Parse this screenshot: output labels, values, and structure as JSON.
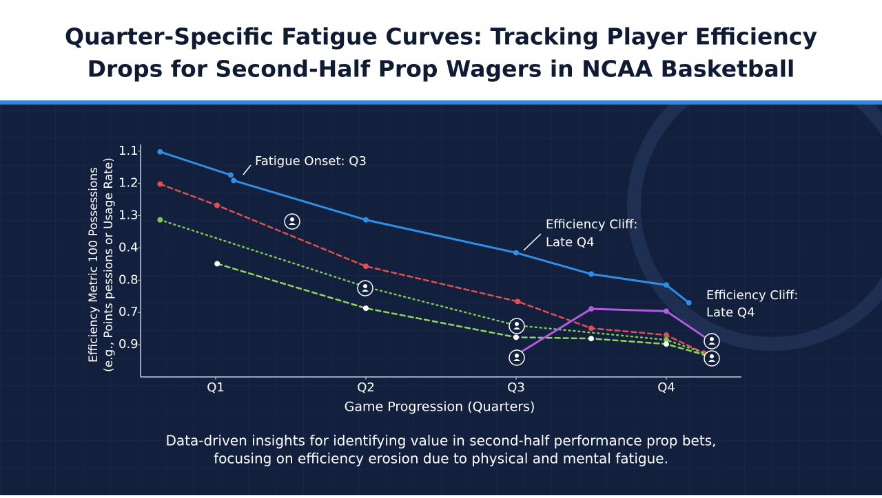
{
  "chart_data": {
    "type": "line",
    "title": [
      "Quarter-Specific Fatigue Curves: Tracking Player Efficiency",
      "Drops for Second-Half Prop Wagers in NCAA Basketball"
    ],
    "subtitle": [
      "Data-driven insights for identifying value in second-half performance prop bets,",
      "focusing on efficiency erosion due to physical and mental fatigue."
    ],
    "xlabel": "Game Progression (Quarters)",
    "ylabel": [
      "Efficiency Metric  100 Possessions",
      "(e.g., Points pessions or Usage Rate)"
    ],
    "xlim": [
      0.5,
      4.5
    ],
    "xticks": [
      {
        "value": 1,
        "label": "Q1"
      },
      {
        "value": 2,
        "label": "Q2"
      },
      {
        "value": 3,
        "label": "Q3"
      },
      {
        "value": 4,
        "label": "Q4"
      }
    ],
    "ylim": [
      0,
      7.4
    ],
    "yticks": [
      {
        "value": 7,
        "label": "1.1"
      },
      {
        "value": 6,
        "label": "1.2"
      },
      {
        "value": 5,
        "label": "1.3"
      },
      {
        "value": 4,
        "label": "0.4"
      },
      {
        "value": 3,
        "label": "0.8"
      },
      {
        "value": 2,
        "label": "0.7"
      },
      {
        "value": 1,
        "label": "0.9"
      }
    ],
    "series": [
      {
        "color": "#2e8fe6",
        "style": "solid",
        "x": [
          0.63,
          1.1,
          1.11,
          1.12,
          2,
          3,
          3.5,
          4,
          4.15
        ],
        "values": [
          6.98,
          6.26,
          null,
          6.09,
          4.87,
          3.85,
          3.19,
          2.85,
          2.3
        ]
      },
      {
        "color": "#e0504f",
        "style": "dashed",
        "x": [
          0.63,
          1.01,
          2,
          3.01,
          3.5,
          4,
          4.25
        ],
        "values": [
          5.98,
          5.32,
          3.43,
          2.34,
          1.51,
          1.3,
          0.74
        ]
      },
      {
        "color": "#7ec850",
        "style": "dotted",
        "x": [
          0.63,
          2,
          3,
          4,
          4.29
        ],
        "values": [
          4.87,
          2.79,
          1.6,
          1.15,
          0.68
        ]
      },
      {
        "color": "#8fd65a",
        "style": "dashed",
        "x": [
          1.01,
          2,
          3,
          3.5,
          4,
          4.29
        ],
        "values": [
          3.51,
          2.13,
          1.23,
          1.19,
          1.02,
          0.64
        ]
      },
      {
        "color": "#b05be0",
        "style": "solid",
        "x": [
          3,
          3.5,
          4,
          4.29
        ],
        "values": [
          0.68,
          2.11,
          2.04,
          1.13
        ]
      }
    ],
    "annotations": [
      {
        "lines": [
          "Fatigue Onset: Q3"
        ]
      },
      {
        "lines": [
          "Efficiency Cliff:",
          "Late Q4"
        ]
      },
      {
        "lines": [
          "Efficiency Cliff:",
          "Late Q4"
        ]
      }
    ]
  }
}
